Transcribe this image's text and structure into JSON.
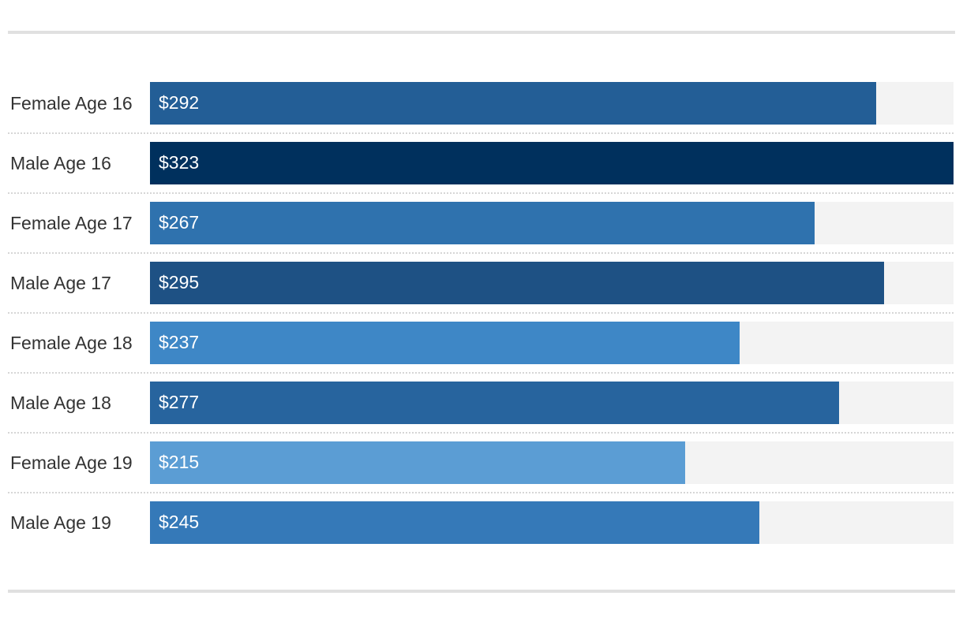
{
  "chart_data": {
    "type": "bar",
    "orientation": "horizontal",
    "categories": [
      "Female Age 16",
      "Male Age 16",
      "Female Age 17",
      "Male Age 17",
      "Female Age 18",
      "Male Age 18",
      "Female Age 19",
      "Male Age 19"
    ],
    "values": [
      292,
      323,
      267,
      295,
      237,
      277,
      215,
      245
    ],
    "value_labels": [
      "$292",
      "$323",
      "$267",
      "$295",
      "$237",
      "$277",
      "$215",
      "$245"
    ],
    "colors": [
      "#235e96",
      "#00305d",
      "#2f72ae",
      "#1e5184",
      "#3e87c6",
      "#27649e",
      "#5b9dd4",
      "#3579b8"
    ],
    "xlim": [
      0,
      323
    ],
    "grid": false,
    "legend": "none",
    "track_color": "#f3f3f3"
  }
}
